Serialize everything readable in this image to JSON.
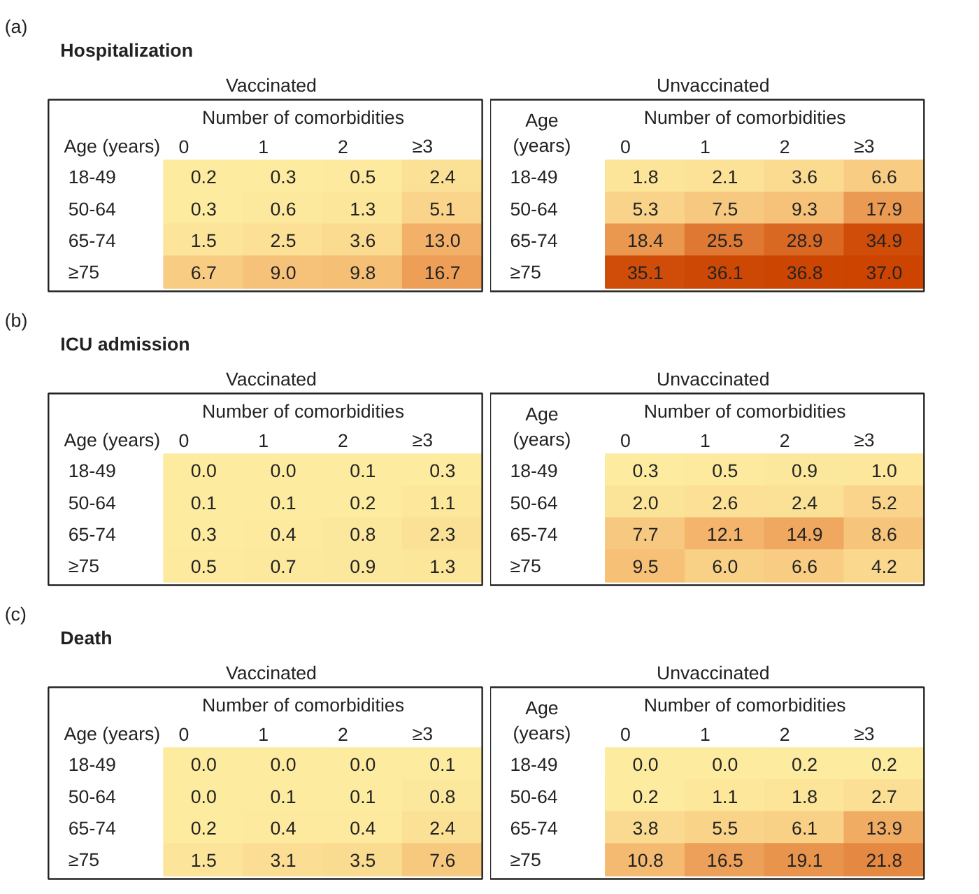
{
  "chart_data": [
    {
      "type": "heatmap",
      "data_labels": true,
      "annotations": [
        "(a)",
        "Hospitalization"
      ],
      "title": "Vaccinated",
      "xlabel": "Number of comorbidities",
      "ylabel": "Age (years)",
      "categories": [
        "0",
        "1",
        "2",
        "≥3"
      ],
      "y_categories": [
        "18-49",
        "50-64",
        "65-74",
        "≥75"
      ],
      "cells": [
        [
          0.2,
          0.3,
          0.5,
          2.4
        ],
        [
          0.3,
          0.6,
          1.3,
          5.1
        ],
        [
          1.5,
          2.5,
          3.6,
          13.0
        ],
        [
          6.7,
          9.0,
          9.8,
          16.7
        ]
      ],
      "cell_labels": [
        [
          "0.2",
          "0.3",
          "0.5",
          "2.4"
        ],
        [
          "0.3",
          "0.6",
          "1.3",
          "5.1"
        ],
        [
          "1.5",
          "2.5",
          "3.6",
          "13.0"
        ],
        [
          "6.7",
          "9.0",
          "9.8",
          "16.7"
        ]
      ]
    },
    {
      "type": "heatmap",
      "title": "Unvaccinated",
      "xlabel": "Number of comorbidities",
      "ylabel": "Age (years)",
      "categories": [
        "0",
        "1",
        "2",
        "≥3"
      ],
      "y_categories": [
        "18-49",
        "50-64",
        "65-74",
        "≥75"
      ],
      "data_labels": true,
      "cells": [
        [
          1.8,
          2.1,
          3.6,
          6.6
        ],
        [
          5.3,
          7.5,
          9.3,
          17.9
        ],
        [
          18.4,
          25.5,
          28.9,
          34.9
        ],
        [
          35.1,
          36.1,
          36.8,
          37.0
        ]
      ],
      "cell_labels": [
        [
          "1.8",
          "2.1",
          "3.6",
          "6.6"
        ],
        [
          "5.3",
          "7.5",
          "9.3",
          "17.9"
        ],
        [
          "18.4",
          "25.5",
          "28.9",
          "34.9"
        ],
        [
          "35.1",
          "36.1",
          "36.8",
          "37.0"
        ]
      ]
    },
    {
      "type": "heatmap",
      "data_labels": true,
      "annotations": [
        "(b)",
        "ICU admission"
      ],
      "title": "Vaccinated",
      "xlabel": "Number of comorbidities",
      "ylabel": "Age (years)",
      "categories": [
        "0",
        "1",
        "2",
        "≥3"
      ],
      "y_categories": [
        "18-49",
        "50-64",
        "65-74",
        "≥75"
      ],
      "cells": [
        [
          0.0,
          0.0,
          0.1,
          0.3
        ],
        [
          0.1,
          0.1,
          0.2,
          1.1
        ],
        [
          0.3,
          0.4,
          0.8,
          2.3
        ],
        [
          0.5,
          0.7,
          0.9,
          1.3
        ]
      ],
      "cell_labels": [
        [
          "0.0",
          "0.0",
          "0.1",
          "0.3"
        ],
        [
          "0.1",
          "0.1",
          "0.2",
          "1.1"
        ],
        [
          "0.3",
          "0.4",
          "0.8",
          "2.3"
        ],
        [
          "0.5",
          "0.7",
          "0.9",
          "1.3"
        ]
      ]
    },
    {
      "type": "heatmap",
      "title": "Unvaccinated",
      "xlabel": "Number of comorbidities",
      "ylabel": "Age (years)",
      "categories": [
        "0",
        "1",
        "2",
        "≥3"
      ],
      "y_categories": [
        "18-49",
        "50-64",
        "65-74",
        "≥75"
      ],
      "data_labels": true,
      "cells": [
        [
          0.3,
          0.5,
          0.9,
          1.0
        ],
        [
          2.0,
          2.6,
          2.4,
          5.2
        ],
        [
          7.7,
          12.1,
          14.9,
          8.6
        ],
        [
          9.5,
          6.0,
          6.6,
          4.2
        ]
      ],
      "cell_labels": [
        [
          "0.3",
          "0.5",
          "0.9",
          "1.0"
        ],
        [
          "2.0",
          "2.6",
          "2.4",
          "5.2"
        ],
        [
          "7.7",
          "12.1",
          "14.9",
          "8.6"
        ],
        [
          "9.5",
          "6.0",
          "6.6",
          "4.2"
        ]
      ]
    },
    {
      "type": "heatmap",
      "data_labels": true,
      "annotations": [
        "(c)",
        "Death"
      ],
      "title": "Vaccinated",
      "xlabel": "Number of comorbidities",
      "ylabel": "Age (years)",
      "categories": [
        "0",
        "1",
        "2",
        "≥3"
      ],
      "y_categories": [
        "18-49",
        "50-64",
        "65-74",
        "≥75"
      ],
      "cells": [
        [
          0.0,
          0.0,
          0.0,
          0.1
        ],
        [
          0.0,
          0.1,
          0.1,
          0.8
        ],
        [
          0.2,
          0.4,
          0.4,
          2.4
        ],
        [
          1.5,
          3.1,
          3.5,
          7.6
        ]
      ],
      "cell_labels": [
        [
          "0.0",
          "0.0",
          "0.0",
          "0.1"
        ],
        [
          "0.0",
          "0.1",
          "0.1",
          "0.8"
        ],
        [
          "0.2",
          "0.4",
          "0.4",
          "2.4"
        ],
        [
          "1.5",
          "3.1",
          "3.5",
          "7.6"
        ]
      ]
    },
    {
      "type": "heatmap",
      "title": "Unvaccinated",
      "xlabel": "Number of comorbidities",
      "ylabel": "Age (years)",
      "categories": [
        "0",
        "1",
        "2",
        "≥3"
      ],
      "y_categories": [
        "18-49",
        "50-64",
        "65-74",
        "≥75"
      ],
      "data_labels": true,
      "cells": [
        [
          0.0,
          0.0,
          0.2,
          0.2
        ],
        [
          0.2,
          1.1,
          1.8,
          2.7
        ],
        [
          3.8,
          5.5,
          6.1,
          13.9
        ],
        [
          10.8,
          16.5,
          19.1,
          21.8
        ]
      ],
      "cell_labels": [
        [
          "0.0",
          "0.0",
          "0.2",
          "0.2"
        ],
        [
          "0.2",
          "1.1",
          "1.8",
          "2.7"
        ],
        [
          "3.8",
          "5.5",
          "6.1",
          "13.9"
        ],
        [
          "10.8",
          "16.5",
          "19.1",
          "21.8"
        ]
      ]
    }
  ]
}
